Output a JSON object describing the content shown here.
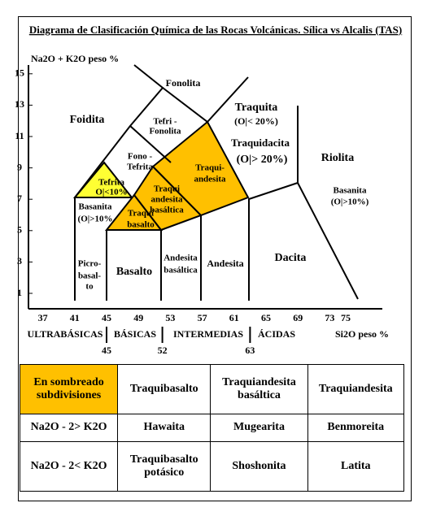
{
  "title": "Diagrama de Clasificación Química de las Rocas Volcánicas. Sílica vs Alcalis (TAS)",
  "y_axis": {
    "label": "Na2O + K2O peso %",
    "ticks": [
      1,
      3,
      5,
      7,
      9,
      11,
      13,
      15
    ]
  },
  "x_axis": {
    "label": "Si2O peso %",
    "ticks": [
      37,
      41,
      45,
      49,
      53,
      57,
      61,
      65,
      69,
      73,
      75
    ]
  },
  "silica_groups": [
    "ULTRABÁSICAS",
    "BÁSICAS",
    "INTERMEDIAS",
    "ÁCIDAS"
  ],
  "group_limits": [
    45,
    52,
    63
  ],
  "regions": [
    {
      "lines": [
        "Fonolita"
      ]
    },
    {
      "lines": [
        "Foidita"
      ]
    },
    {
      "lines": [
        "Tefri -",
        "Fonolita"
      ]
    },
    {
      "lines": [
        "Traquita",
        "(O|< 20%)"
      ]
    },
    {
      "lines": [
        "Traquidacita",
        "(O|> 20%)"
      ]
    },
    {
      "lines": [
        "Riolita"
      ]
    },
    {
      "lines": [
        "Fono -",
        "Tefrita"
      ]
    },
    {
      "lines": [
        "Tefrita",
        "O|<10%"
      ]
    },
    {
      "lines": [
        "Traqui-",
        "andesita"
      ]
    },
    {
      "lines": [
        "Traqui",
        "andesita",
        "basáltica"
      ]
    },
    {
      "lines": [
        "Traqui",
        "basalto"
      ]
    },
    {
      "lines": [
        "Basanita",
        "(O|>10%"
      ]
    },
    {
      "lines": [
        "Basanita",
        "(O|>10%)"
      ]
    },
    {
      "lines": [
        "Picro-",
        "basal-",
        "to"
      ]
    },
    {
      "lines": [
        "Basalto"
      ]
    },
    {
      "lines": [
        "Andesita",
        "basáltica"
      ]
    },
    {
      "lines": [
        "Andesita"
      ]
    },
    {
      "lines": [
        "Dacita"
      ]
    }
  ],
  "table": {
    "rows": [
      [
        "En sombreado subdivisiones",
        "Traquibasalto",
        "Traquiandesita basáltica",
        "Traquiandesita"
      ],
      [
        "Na2O - 2> K2O",
        "Hawaita",
        "Mugearita",
        "Benmoreita"
      ],
      [
        "Na2O - 2< K2O",
        "Traquibasalto potásico",
        "Shoshonita",
        "Latita"
      ]
    ]
  }
}
